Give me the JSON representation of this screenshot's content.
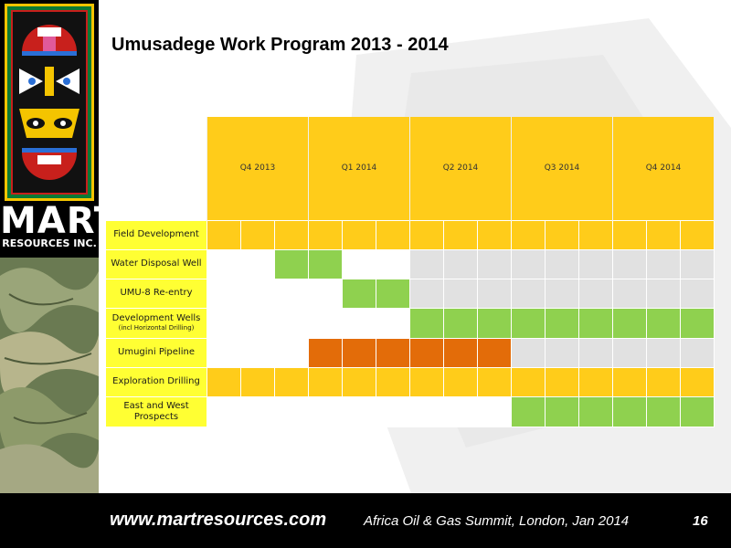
{
  "slide": {
    "title": "Umusadege Work Program 2013 - 2014"
  },
  "brand": {
    "name": "MART",
    "subtitle": "RESOURCES INC."
  },
  "gantt": {
    "quarters": [
      "Q4 2013",
      "Q1 2014",
      "Q2 2014",
      "Q3 2014",
      "Q4 2014"
    ],
    "rows": [
      {
        "label": "Field Development",
        "sublabel": "",
        "cells": [
          "y",
          "y",
          "y",
          "y",
          "y",
          "y",
          "y",
          "y",
          "y",
          "y",
          "y",
          "y",
          "y",
          "y",
          "y"
        ]
      },
      {
        "label": "Water Disposal Well",
        "sublabel": "",
        "cells": [
          "w",
          "w",
          "g",
          "g",
          "w",
          "w",
          "r",
          "r",
          "r",
          "r",
          "r",
          "r",
          "r",
          "r",
          "r"
        ]
      },
      {
        "label": "UMU-8 Re-entry",
        "sublabel": "",
        "cells": [
          "w",
          "w",
          "w",
          "w",
          "g",
          "g",
          "r",
          "r",
          "r",
          "r",
          "r",
          "r",
          "r",
          "r",
          "r"
        ]
      },
      {
        "label": "Development Wells",
        "sublabel": "(incl Horizontal Drilling)",
        "cells": [
          "w",
          "w",
          "w",
          "w",
          "w",
          "w",
          "g",
          "g",
          "g",
          "g",
          "g",
          "g",
          "g",
          "g",
          "g"
        ]
      },
      {
        "label": "Umugini Pipeline",
        "sublabel": "",
        "cells": [
          "w",
          "w",
          "w",
          "o",
          "o",
          "o",
          "o",
          "o",
          "o",
          "r",
          "r",
          "r",
          "r",
          "r",
          "r"
        ]
      },
      {
        "label": "Exploration Drilling",
        "sublabel": "",
        "cells": [
          "y",
          "y",
          "y",
          "y",
          "y",
          "y",
          "y",
          "y",
          "y",
          "y",
          "y",
          "y",
          "y",
          "y",
          "y"
        ]
      },
      {
        "label": "East and West Prospects",
        "sublabel": "",
        "cells": [
          "w",
          "w",
          "w",
          "w",
          "w",
          "w",
          "w",
          "w",
          "w",
          "g",
          "g",
          "g",
          "g",
          "g",
          "g"
        ]
      }
    ]
  },
  "colors": {
    "w": "#ffffff",
    "r": "#e1e1e1",
    "y": "#ffcc1a",
    "g": "#8fd14f",
    "o": "#e36c09"
  },
  "footer": {
    "url": "www.martresources.com",
    "event": "Africa Oil & Gas Summit, London, Jan 2014",
    "page": "16"
  }
}
